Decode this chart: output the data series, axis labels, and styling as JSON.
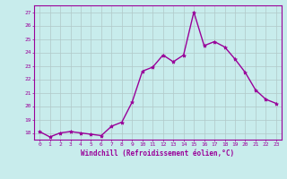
{
  "x": [
    0,
    1,
    2,
    3,
    4,
    5,
    6,
    7,
    8,
    9,
    10,
    11,
    12,
    13,
    14,
    15,
    16,
    17,
    18,
    19,
    20,
    21,
    22,
    23
  ],
  "y": [
    18.1,
    17.7,
    18.0,
    18.1,
    18.0,
    17.9,
    17.8,
    18.5,
    18.8,
    20.3,
    22.6,
    22.9,
    23.8,
    23.3,
    23.8,
    27.0,
    24.5,
    24.8,
    24.4,
    23.5,
    22.5,
    21.2,
    20.5,
    20.2
  ],
  "line_color": "#990099",
  "marker": "*",
  "marker_color": "#990099",
  "marker_size": 3,
  "bg_color": "#c8ecec",
  "grid_color": "#b0c8c8",
  "xlabel": "Windchill (Refroidissement éolien,°C)",
  "xlabel_color": "#990099",
  "tick_color": "#990099",
  "ylim": [
    17.5,
    27.5
  ],
  "xlim": [
    -0.5,
    23.5
  ],
  "yticks": [
    18,
    19,
    20,
    21,
    22,
    23,
    24,
    25,
    26,
    27
  ],
  "xticks": [
    0,
    1,
    2,
    3,
    4,
    5,
    6,
    7,
    8,
    9,
    10,
    11,
    12,
    13,
    14,
    15,
    16,
    17,
    18,
    19,
    20,
    21,
    22,
    23
  ],
  "line_width": 1.0,
  "spine_color": "#990099"
}
